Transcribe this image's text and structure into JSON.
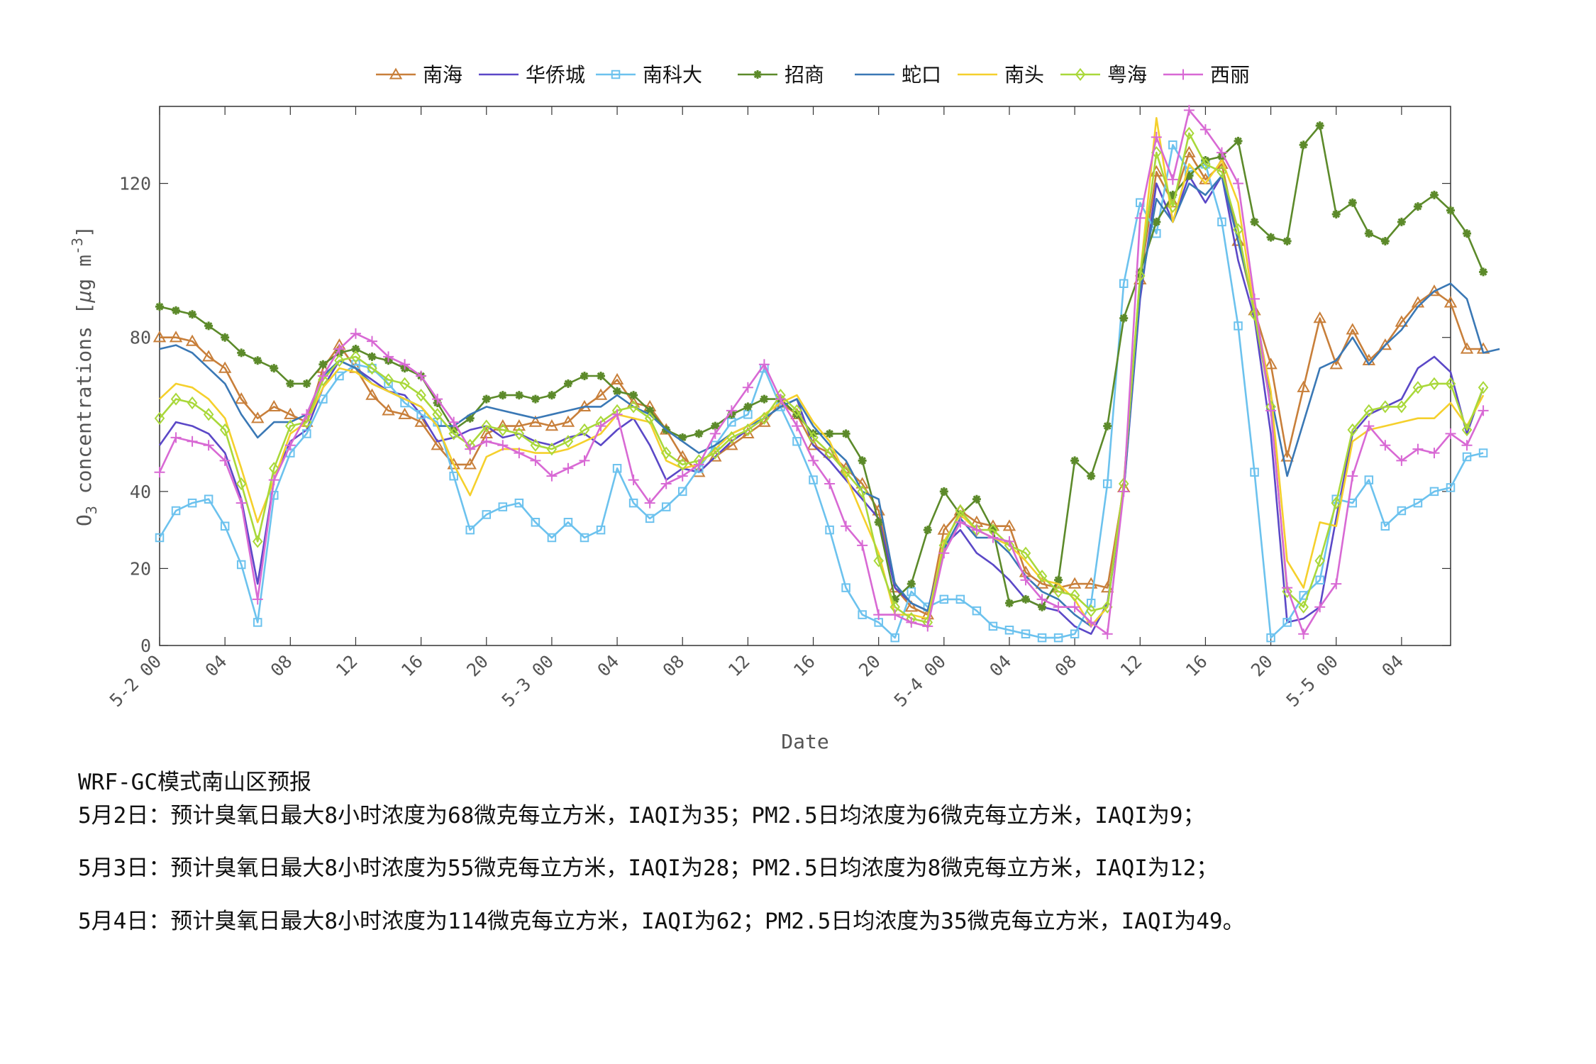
{
  "chart_data": {
    "type": "line",
    "xlabel": "Date",
    "ylabel": "O3 concentrations [μg m-3]",
    "ylim": [
      0,
      140
    ],
    "y_ticks": [
      0,
      20,
      40,
      80,
      120
    ],
    "x_range": [
      "5-2 00",
      "5-5 07"
    ],
    "x_tick_labels": [
      "5-2 00",
      "04",
      "08",
      "12",
      "16",
      "20",
      "5-3 00",
      "04",
      "08",
      "12",
      "16",
      "20",
      "5-4 00",
      "04",
      "08",
      "12",
      "16",
      "20",
      "5-5 00",
      "04"
    ],
    "x_tick_hours": [
      0,
      4,
      8,
      12,
      16,
      20,
      24,
      28,
      32,
      36,
      40,
      44,
      48,
      52,
      56,
      60,
      64,
      68,
      72,
      76
    ],
    "legend_position": "top",
    "series": [
      {
        "name": "南海",
        "color": "#c87f3a",
        "marker": "triangle",
        "values": [
          80,
          80,
          79,
          75,
          72,
          64,
          59,
          62,
          60,
          58,
          72,
          78,
          72,
          65,
          61,
          60,
          58,
          52,
          47,
          47,
          55,
          57,
          57,
          58,
          57,
          58,
          62,
          65,
          69,
          63,
          62,
          56,
          49,
          45,
          49,
          52,
          55,
          58,
          63,
          60,
          52,
          50,
          46,
          42,
          35,
          15,
          10,
          8,
          30,
          35,
          32,
          31,
          31,
          19,
          16,
          15,
          16,
          16,
          15,
          41,
          95,
          123,
          115,
          128,
          121,
          125,
          105,
          87,
          73,
          49,
          67,
          85,
          73,
          82,
          74,
          78,
          84,
          89,
          92,
          89,
          77,
          77
        ]
      },
      {
        "name": "华侨城",
        "color": "#5b48c7",
        "marker": "none",
        "values": [
          52,
          58,
          57,
          55,
          50,
          38,
          16,
          43,
          53,
          56,
          67,
          74,
          72,
          69,
          66,
          65,
          60,
          53,
          54,
          56,
          57,
          54,
          55,
          53,
          52,
          54,
          55,
          52,
          56,
          59,
          52,
          43,
          46,
          45,
          49,
          53,
          56,
          59,
          62,
          64,
          52,
          48,
          43,
          38,
          33,
          15,
          11,
          9,
          26,
          30,
          24,
          21,
          17,
          12,
          10,
          9,
          5,
          3,
          11,
          40,
          90,
          120,
          110,
          122,
          115,
          122,
          100,
          85,
          55,
          6,
          7,
          10,
          33,
          55,
          60,
          62,
          64,
          72,
          75,
          71,
          55,
          67
        ]
      },
      {
        "name": "南科大",
        "color": "#6cc2ee",
        "marker": "square",
        "values": [
          28,
          35,
          37,
          38,
          31,
          21,
          6,
          39,
          50,
          55,
          64,
          70,
          73,
          72,
          68,
          63,
          60,
          58,
          44,
          30,
          34,
          36,
          37,
          32,
          28,
          32,
          28,
          30,
          46,
          37,
          33,
          36,
          40,
          46,
          52,
          58,
          60,
          72,
          62,
          53,
          43,
          30,
          15,
          8,
          6,
          2,
          14,
          10,
          12,
          12,
          9,
          5,
          4,
          3,
          2,
          2,
          3,
          11,
          42,
          94,
          115,
          107,
          130,
          123,
          125,
          110,
          83,
          45,
          2,
          6,
          13,
          17,
          38,
          37,
          43,
          31,
          35,
          37,
          40,
          41,
          49,
          50
        ]
      },
      {
        "name": "招商",
        "color": "#5c8a2a",
        "marker": "star",
        "values": [
          88,
          87,
          86,
          83,
          80,
          76,
          74,
          72,
          68,
          68,
          73,
          76,
          77,
          75,
          74,
          72,
          70,
          63,
          56,
          59,
          64,
          65,
          65,
          64,
          65,
          68,
          70,
          70,
          66,
          65,
          61,
          56,
          54,
          55,
          57,
          60,
          62,
          64,
          64,
          60,
          55,
          55,
          55,
          48,
          32,
          12,
          16,
          30,
          40,
          34,
          38,
          30,
          11,
          12,
          10,
          17,
          48,
          44,
          57,
          85,
          97,
          110,
          117,
          122,
          126,
          127,
          131,
          110,
          106,
          105,
          130,
          135,
          112,
          115,
          107,
          105,
          110,
          114,
          117,
          113,
          107,
          97
        ]
      },
      {
        "name": "蛇口",
        "color": "#3a78b5",
        "marker": "none",
        "values": [
          77,
          78,
          76,
          72,
          68,
          60,
          54,
          58,
          58,
          60,
          70,
          74,
          72,
          68,
          66,
          64,
          62,
          57,
          57,
          60,
          62,
          61,
          60,
          59,
          60,
          61,
          62,
          62,
          65,
          62,
          60,
          56,
          53,
          50,
          52,
          55,
          57,
          59,
          62,
          64,
          57,
          52,
          48,
          40,
          38,
          16,
          11,
          9,
          25,
          33,
          28,
          28,
          24,
          18,
          14,
          12,
          8,
          5,
          10,
          40,
          92,
          116,
          110,
          120,
          117,
          122,
          105,
          88,
          65,
          44,
          58,
          72,
          74,
          80,
          73,
          78,
          82,
          88,
          92,
          94,
          90,
          76,
          77
        ]
      },
      {
        "name": "南头",
        "color": "#f5d02c",
        "marker": "none",
        "values": [
          64,
          68,
          67,
          64,
          59,
          46,
          32,
          43,
          55,
          58,
          67,
          72,
          71,
          68,
          66,
          64,
          62,
          57,
          47,
          39,
          49,
          51,
          51,
          50,
          50,
          51,
          53,
          55,
          60,
          59,
          58,
          48,
          46,
          47,
          51,
          55,
          57,
          60,
          63,
          65,
          58,
          53,
          44,
          34,
          24,
          8,
          8,
          7,
          27,
          34,
          30,
          28,
          26,
          22,
          17,
          16,
          12,
          5,
          10,
          42,
          96,
          137,
          110,
          125,
          120,
          126,
          115,
          87,
          66,
          22,
          15,
          32,
          31,
          53,
          56,
          57,
          58,
          59,
          59,
          63,
          57,
          65
        ]
      },
      {
        "name": "粤海",
        "color": "#a9d83a",
        "marker": "diamond",
        "values": [
          59,
          64,
          63,
          60,
          56,
          42,
          27,
          46,
          57,
          58,
          69,
          74,
          75,
          72,
          69,
          68,
          65,
          60,
          55,
          52,
          57,
          56,
          55,
          52,
          51,
          53,
          56,
          58,
          61,
          62,
          59,
          50,
          47,
          48,
          50,
          54,
          56,
          59,
          65,
          61,
          54,
          50,
          45,
          40,
          22,
          10,
          7,
          6,
          26,
          35,
          30,
          30,
          26,
          24,
          18,
          14,
          13,
          9,
          10,
          42,
          96,
          128,
          114,
          133,
          125,
          123,
          108,
          86,
          62,
          14,
          10,
          22,
          37,
          56,
          61,
          62,
          62,
          67,
          68,
          68,
          56,
          67
        ]
      },
      {
        "name": "西丽",
        "color": "#d869d4",
        "marker": "plus",
        "values": [
          45,
          54,
          53,
          52,
          48,
          37,
          12,
          43,
          52,
          60,
          70,
          77,
          81,
          79,
          75,
          73,
          70,
          64,
          58,
          51,
          53,
          52,
          50,
          48,
          44,
          46,
          48,
          57,
          60,
          43,
          37,
          42,
          44,
          47,
          55,
          61,
          67,
          73,
          64,
          57,
          48,
          42,
          31,
          26,
          8,
          8,
          6,
          5,
          24,
          32,
          30,
          28,
          27,
          17,
          12,
          10,
          10,
          6,
          3,
          40,
          111,
          132,
          121,
          139,
          134,
          128,
          120,
          90,
          61,
          15,
          3,
          10,
          16,
          44,
          57,
          52,
          48,
          51,
          50,
          55,
          52,
          61
        ]
      }
    ]
  },
  "notes": {
    "title": "WRF-GC模式南山区预报",
    "lines": [
      "5月2日：预计臭氧日最大8小时浓度为68微克每立方米，IAQI为35；PM2.5日均浓度为6微克每立方米，IAQI为9；",
      "5月3日：预计臭氧日最大8小时浓度为55微克每立方米，IAQI为28；PM2.5日均浓度为8微克每立方米，IAQI为12；",
      "5月4日：预计臭氧日最大8小时浓度为114微克每立方米，IAQI为62；PM2.5日均浓度为35微克每立方米，IAQI为49。"
    ]
  }
}
